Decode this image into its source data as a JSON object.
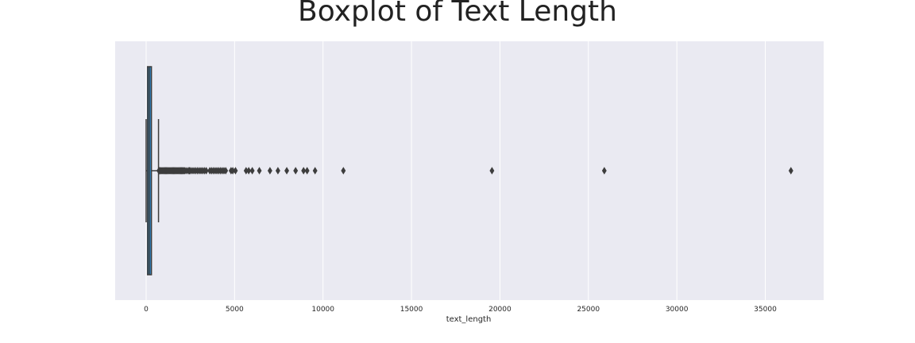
{
  "chart_data": {
    "type": "boxplot",
    "title": "Boxplot of Text Length",
    "xlabel": "text_length",
    "ylabel": "",
    "xlim": [
      -1750,
      38300
    ],
    "xticks": [
      0,
      5000,
      10000,
      15000,
      20000,
      25000,
      30000,
      35000
    ],
    "xtick_labels": [
      "0",
      "5000",
      "10000",
      "15000",
      "20000",
      "25000",
      "30000",
      "35000"
    ],
    "grid": true,
    "orientation": "horizontal",
    "box": {
      "whisker_low": 0,
      "q1": 80,
      "median": 170,
      "q3": 300,
      "whisker_high": 700
    },
    "outliers": [
      720,
      760,
      800,
      850,
      900,
      950,
      1000,
      1050,
      1100,
      1150,
      1200,
      1250,
      1300,
      1350,
      1400,
      1450,
      1500,
      1550,
      1600,
      1650,
      1700,
      1750,
      1800,
      1850,
      1900,
      1950,
      2000,
      2050,
      2100,
      2150,
      2200,
      2300,
      2400,
      2450,
      2500,
      2600,
      2700,
      2800,
      2900,
      3000,
      3100,
      3200,
      3300,
      3400,
      3600,
      3700,
      3800,
      3900,
      4000,
      4100,
      4200,
      4300,
      4400,
      4500,
      4800,
      4900,
      5050,
      5650,
      5800,
      6000,
      6400,
      7000,
      7450,
      7950,
      8450,
      8900,
      9100,
      9550,
      11150,
      19550,
      25900,
      36450
    ],
    "colors": {
      "background": "#eaeaf2",
      "grid": "#ffffff",
      "box_fill": "#2f7fb8",
      "line": "#3d3d3d"
    }
  }
}
